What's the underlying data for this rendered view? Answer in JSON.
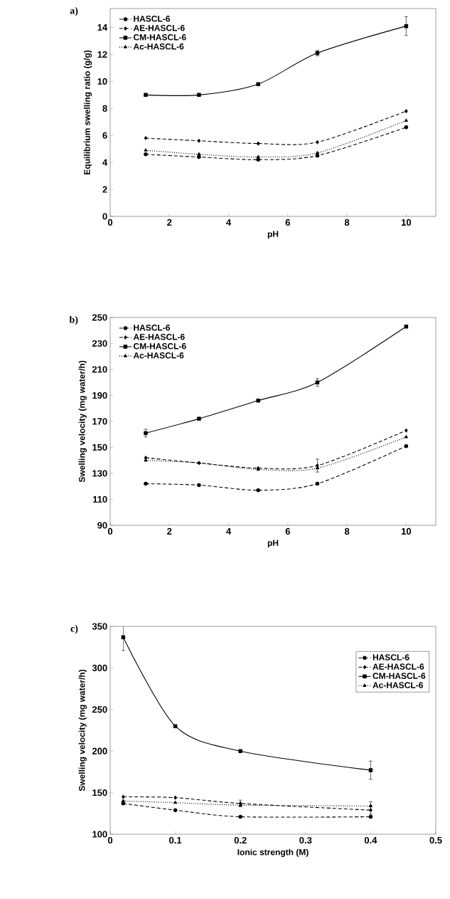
{
  "chart_data": [
    {
      "type": "line",
      "title": "a)",
      "xlabel": "pH",
      "ylabel": "Equilibrium swelling ratio (g/g)",
      "x": [
        1.2,
        3,
        5,
        7,
        10
      ],
      "xlim": [
        0,
        11
      ],
      "xticks": [
        0,
        2,
        4,
        6,
        8,
        10
      ],
      "ylim": [
        0,
        15.4
      ],
      "yticks": [
        0,
        2,
        4,
        6,
        8,
        10,
        12,
        14
      ],
      "legend": "top left",
      "grid": false,
      "series": [
        {
          "name": "HASCL-6",
          "color": "#000000",
          "marker": "circle",
          "line_style": "dashed",
          "values": [
            4.6,
            4.4,
            4.2,
            4.5,
            6.6
          ]
        },
        {
          "name": "AE-HASCL-6",
          "color": "#000000",
          "marker": "diamond",
          "line_style": "dashed",
          "values": [
            5.8,
            5.6,
            5.4,
            5.5,
            7.8
          ]
        },
        {
          "name": "CM-HASCL-6",
          "color": "#000000",
          "marker": "square",
          "line_style": "solid",
          "values": [
            9.0,
            9.0,
            9.8,
            12.1,
            14.1
          ],
          "errors": [
            null,
            null,
            null,
            0.2,
            0.7
          ]
        },
        {
          "name": "Ac-HASCL-6",
          "color": "#000000",
          "marker": "triangle",
          "line_style": "dotted",
          "values": [
            4.9,
            4.6,
            4.4,
            4.7,
            7.1
          ]
        }
      ]
    },
    {
      "type": "line",
      "title": "b)",
      "xlabel": "pH",
      "ylabel": "Swelling velocity (mg water/h)",
      "x": [
        1.2,
        3,
        5,
        7,
        10
      ],
      "xlim": [
        0,
        11
      ],
      "xticks": [
        0,
        2,
        4,
        6,
        8,
        10
      ],
      "ylim": [
        90,
        250
      ],
      "yticks": [
        90,
        110,
        130,
        150,
        170,
        190,
        210,
        230,
        250
      ],
      "legend": "top left",
      "grid": false,
      "series": [
        {
          "name": "HASCL-6",
          "color": "#000000",
          "marker": "circle",
          "line_style": "dashed",
          "values": [
            122,
            121,
            117,
            122,
            151
          ]
        },
        {
          "name": "AE-HASCL-6",
          "color": "#000000",
          "marker": "diamond",
          "line_style": "dashed",
          "values": [
            142,
            138,
            134,
            136,
            163
          ],
          "errors": [
            null,
            null,
            null,
            5,
            null
          ]
        },
        {
          "name": "CM-HASCL-6",
          "color": "#000000",
          "marker": "square",
          "line_style": "solid",
          "values": [
            161,
            172,
            186,
            200,
            243
          ],
          "errors": [
            3,
            null,
            null,
            3,
            null
          ]
        },
        {
          "name": "Ac-HASCL-6",
          "color": "#000000",
          "marker": "triangle",
          "line_style": "dotted",
          "values": [
            140,
            138,
            133,
            134,
            158
          ]
        }
      ]
    },
    {
      "type": "line",
      "title": "c)",
      "xlabel": "Ionic strength (M)",
      "ylabel": "Swelling velocity (mg water/h)",
      "x": [
        0.02,
        0.1,
        0.2,
        0.4
      ],
      "xlim": [
        0,
        0.5
      ],
      "xticks": [
        0,
        0.1,
        0.2,
        0.3,
        0.4,
        0.5
      ],
      "ylim": [
        100,
        350
      ],
      "yticks": [
        100,
        150,
        200,
        250,
        300,
        350
      ],
      "legend": "top right",
      "grid": false,
      "series": [
        {
          "name": "HASCL-6",
          "color": "#000000",
          "marker": "circle",
          "line_style": "dashed",
          "values": [
            137,
            129,
            121,
            121
          ]
        },
        {
          "name": "AE-HASCL-6",
          "color": "#000000",
          "marker": "diamond",
          "line_style": "dashed",
          "values": [
            145,
            144,
            137,
            129
          ],
          "errors": [
            null,
            null,
            4,
            5
          ]
        },
        {
          "name": "CM-HASCL-6",
          "color": "#000000",
          "marker": "square",
          "line_style": "solid",
          "values": [
            337,
            230,
            200,
            177
          ],
          "errors": [
            16,
            null,
            null,
            11
          ]
        },
        {
          "name": "Ac-HASCL-6",
          "color": "#000000",
          "marker": "triangle",
          "line_style": "dotted",
          "values": [
            140,
            138,
            135,
            134
          ],
          "errors": [
            null,
            null,
            null,
            5
          ]
        }
      ]
    }
  ]
}
